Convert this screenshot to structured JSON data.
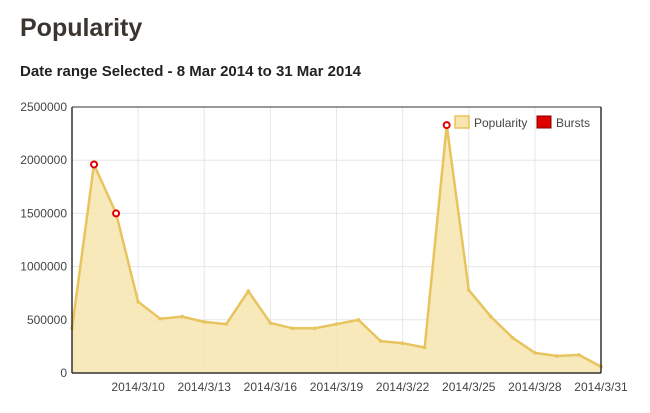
{
  "page": {
    "title": "Popularity",
    "date_range": "Date range Selected - 8 Mar 2014 to 31 Mar 2014"
  },
  "colors": {
    "line": "#e8c45f",
    "fill": "#f7e5ae",
    "burst": "#e00000",
    "grid": "#e6e6e6",
    "axis": "#333333"
  },
  "chart_data": {
    "type": "area",
    "title": "Popularity",
    "xlabel": "",
    "ylabel": "",
    "ylim": [
      0,
      2500000
    ],
    "y_ticks": [
      "0",
      "500000",
      "1000000",
      "1500000",
      "2000000",
      "2500000"
    ],
    "x_tick_labels": [
      "2014/3/10",
      "2014/3/13",
      "2014/3/16",
      "2014/3/19",
      "2014/3/22",
      "2014/3/25",
      "2014/3/28",
      "2014/3/31"
    ],
    "x_tick_days": [
      10,
      13,
      16,
      19,
      22,
      25,
      28,
      31
    ],
    "x_range_days": [
      7,
      31
    ],
    "grid": true,
    "legend": {
      "position": "top-right",
      "entries": [
        "Popularity",
        "Bursts"
      ]
    },
    "series": [
      {
        "name": "Popularity",
        "days": [
          7,
          8,
          9,
          10,
          11,
          12,
          13,
          14,
          15,
          16,
          17,
          18,
          19,
          20,
          21,
          22,
          23,
          24,
          25,
          26,
          27,
          28,
          29,
          30,
          31
        ],
        "values": [
          420000,
          1960000,
          1500000,
          670000,
          510000,
          530000,
          480000,
          460000,
          770000,
          470000,
          420000,
          420000,
          460000,
          500000,
          300000,
          280000,
          240000,
          2330000,
          780000,
          530000,
          330000,
          190000,
          160000,
          170000,
          60000
        ]
      },
      {
        "name": "Bursts",
        "days": [
          8,
          9,
          24
        ],
        "values": [
          1960000,
          1500000,
          2330000
        ]
      }
    ]
  }
}
